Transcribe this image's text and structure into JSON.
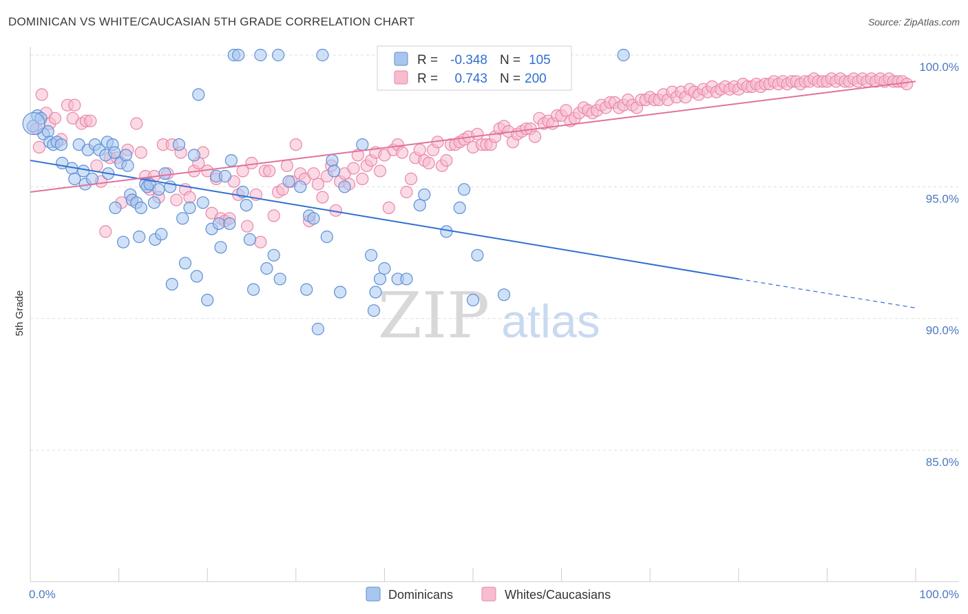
{
  "header": {
    "title": "DOMINICAN VS WHITE/CAUCASIAN 5TH GRADE CORRELATION CHART",
    "source": "Source: ZipAtlas.com"
  },
  "watermark": {
    "zip": "ZIP",
    "atlas": "atlas"
  },
  "colors": {
    "blue_fill": "#a9c6ef",
    "blue_stroke": "#5b8fd6",
    "blue_line": "#2f6fd0",
    "pink_fill": "#f6bcd0",
    "pink_stroke": "#ea86a8",
    "pink_line": "#e3709b",
    "tick_text": "#4a78c2",
    "grid": "#dddddd"
  },
  "legend": {
    "rows": [
      {
        "r_label": "R =",
        "r_value": "-0.348",
        "n_label": "N =",
        "n_value": "105"
      },
      {
        "r_label": "R =",
        "r_value": "0.743",
        "n_label": "N =",
        "n_value": "200"
      }
    ],
    "bottom": [
      "Dominicans",
      "Whites/Caucasians"
    ]
  },
  "chart_data": {
    "type": "scatter",
    "title": "DOMINICAN VS WHITE/CAUCASIAN 5TH GRADE CORRELATION CHART",
    "xlabel": "",
    "ylabel": "5th Grade",
    "xlim": [
      0,
      100
    ],
    "ylim": [
      80.5,
      100.5
    ],
    "x_tick_labels": [
      "0.0%",
      "100.0%"
    ],
    "y_ticks": [
      85,
      90,
      95,
      100
    ],
    "y_tick_labels": [
      "85.0%",
      "90.0%",
      "95.0%",
      "100.0%"
    ],
    "grid": true,
    "legend_position": "top-center",
    "series": [
      {
        "name": "Dominicans",
        "R": -0.348,
        "N": 105,
        "trend": {
          "x": [
            0,
            80,
            100
          ],
          "y": [
            96.0,
            91.5,
            90.4
          ],
          "dashed_from": 80
        },
        "points": [
          [
            0.3,
            97.3
          ],
          [
            0.8,
            97.7
          ],
          [
            1.2,
            97.6
          ],
          [
            1.5,
            97.0
          ],
          [
            2.0,
            97.1
          ],
          [
            2.2,
            96.7
          ],
          [
            2.6,
            96.6
          ],
          [
            3.0,
            96.7
          ],
          [
            3.5,
            96.6
          ],
          [
            3.6,
            95.9
          ],
          [
            4.7,
            95.7
          ],
          [
            5.0,
            95.3
          ],
          [
            5.5,
            96.6
          ],
          [
            6.0,
            95.6
          ],
          [
            6.2,
            95.1
          ],
          [
            6.5,
            96.4
          ],
          [
            7.0,
            95.3
          ],
          [
            7.3,
            96.6
          ],
          [
            7.8,
            96.4
          ],
          [
            8.5,
            96.2
          ],
          [
            8.7,
            96.7
          ],
          [
            8.8,
            95.5
          ],
          [
            9.3,
            96.6
          ],
          [
            9.5,
            96.3
          ],
          [
            9.6,
            94.2
          ],
          [
            10.2,
            95.9
          ],
          [
            10.5,
            92.9
          ],
          [
            10.8,
            96.2
          ],
          [
            11.0,
            95.8
          ],
          [
            11.3,
            94.7
          ],
          [
            11.5,
            94.5
          ],
          [
            12.0,
            94.4
          ],
          [
            12.3,
            93.1
          ],
          [
            12.5,
            94.2
          ],
          [
            13.0,
            95.1
          ],
          [
            13.2,
            95.0
          ],
          [
            13.5,
            95.1
          ],
          [
            14.0,
            94.4
          ],
          [
            14.1,
            93.0
          ],
          [
            14.5,
            94.9
          ],
          [
            14.8,
            93.2
          ],
          [
            15.2,
            95.5
          ],
          [
            15.8,
            95.0
          ],
          [
            16.0,
            91.3
          ],
          [
            16.8,
            96.6
          ],
          [
            17.2,
            93.8
          ],
          [
            17.5,
            92.1
          ],
          [
            18.0,
            94.2
          ],
          [
            18.5,
            96.2
          ],
          [
            18.8,
            91.6
          ],
          [
            19.0,
            98.5
          ],
          [
            19.5,
            94.4
          ],
          [
            20.0,
            90.7
          ],
          [
            20.5,
            93.4
          ],
          [
            21.0,
            95.4
          ],
          [
            21.3,
            93.6
          ],
          [
            21.5,
            92.7
          ],
          [
            22.0,
            95.4
          ],
          [
            22.5,
            93.6
          ],
          [
            22.7,
            96.0
          ],
          [
            23.0,
            100.0
          ],
          [
            23.5,
            100.0
          ],
          [
            24.0,
            94.8
          ],
          [
            24.4,
            94.3
          ],
          [
            24.8,
            93.0
          ],
          [
            25.2,
            91.1
          ],
          [
            26.0,
            100.0
          ],
          [
            26.7,
            91.9
          ],
          [
            27.5,
            92.4
          ],
          [
            28.0,
            100.0
          ],
          [
            28.2,
            91.5
          ],
          [
            29.2,
            95.2
          ],
          [
            30.5,
            95.0
          ],
          [
            31.2,
            91.1
          ],
          [
            31.5,
            93.9
          ],
          [
            32.0,
            93.8
          ],
          [
            32.5,
            89.6
          ],
          [
            33.0,
            100.0
          ],
          [
            33.5,
            93.1
          ],
          [
            34.1,
            96.0
          ],
          [
            34.3,
            95.6
          ],
          [
            35.0,
            91.0
          ],
          [
            35.5,
            95.0
          ],
          [
            37.5,
            96.6
          ],
          [
            38.5,
            92.4
          ],
          [
            38.8,
            90.3
          ],
          [
            39.0,
            91.0
          ],
          [
            39.5,
            91.5
          ],
          [
            40.0,
            91.9
          ],
          [
            41.5,
            91.5
          ],
          [
            42.5,
            91.5
          ],
          [
            44.0,
            94.3
          ],
          [
            44.5,
            94.7
          ],
          [
            47.0,
            93.3
          ],
          [
            48.5,
            94.2
          ],
          [
            49.0,
            94.9
          ],
          [
            50.0,
            90.7
          ],
          [
            50.5,
            92.4
          ],
          [
            53.5,
            90.9
          ],
          [
            67.0,
            100.0
          ]
        ]
      },
      {
        "name": "Whites/Caucasians",
        "R": 0.743,
        "N": 200,
        "trend": {
          "x": [
            0,
            100
          ],
          "y": [
            94.8,
            99.0
          ]
        },
        "points": [
          [
            0.7,
            97.2
          ],
          [
            1.0,
            96.5
          ],
          [
            1.3,
            98.5
          ],
          [
            1.8,
            97.8
          ],
          [
            2.2,
            97.4
          ],
          [
            2.8,
            97.6
          ],
          [
            3.5,
            96.8
          ],
          [
            4.2,
            98.1
          ],
          [
            4.8,
            97.6
          ],
          [
            5.0,
            98.1
          ],
          [
            5.8,
            97.4
          ],
          [
            6.3,
            97.5
          ],
          [
            6.8,
            97.5
          ],
          [
            7.5,
            95.8
          ],
          [
            8.0,
            95.2
          ],
          [
            8.5,
            93.3
          ],
          [
            9.0,
            96.1
          ],
          [
            9.8,
            96.1
          ],
          [
            10.3,
            94.4
          ],
          [
            11.0,
            96.4
          ],
          [
            11.5,
            94.5
          ],
          [
            12.0,
            97.4
          ],
          [
            12.5,
            96.3
          ],
          [
            13.0,
            95.4
          ],
          [
            13.5,
            94.9
          ],
          [
            14.0,
            95.4
          ],
          [
            14.5,
            94.6
          ],
          [
            15.0,
            96.6
          ],
          [
            15.5,
            95.5
          ],
          [
            16.0,
            96.6
          ],
          [
            16.5,
            94.5
          ],
          [
            17.0,
            96.3
          ],
          [
            17.5,
            94.9
          ],
          [
            18.0,
            94.6
          ],
          [
            18.5,
            95.6
          ],
          [
            19.0,
            95.9
          ],
          [
            19.5,
            96.3
          ],
          [
            20.0,
            95.6
          ],
          [
            20.5,
            94.0
          ],
          [
            21.0,
            95.3
          ],
          [
            21.5,
            93.8
          ],
          [
            22.0,
            93.7
          ],
          [
            22.5,
            93.8
          ],
          [
            23.0,
            95.2
          ],
          [
            23.5,
            94.7
          ],
          [
            24.0,
            95.6
          ],
          [
            24.5,
            93.5
          ],
          [
            25.0,
            95.9
          ],
          [
            25.5,
            94.7
          ],
          [
            26.0,
            92.9
          ],
          [
            26.5,
            95.6
          ],
          [
            27.0,
            95.6
          ],
          [
            27.5,
            93.9
          ],
          [
            28.0,
            94.8
          ],
          [
            28.5,
            94.9
          ],
          [
            29.0,
            95.8
          ],
          [
            29.5,
            95.2
          ],
          [
            30.0,
            96.6
          ],
          [
            30.5,
            95.5
          ],
          [
            31.0,
            95.3
          ],
          [
            31.5,
            93.7
          ],
          [
            32.0,
            95.5
          ],
          [
            32.5,
            95.1
          ],
          [
            33.0,
            94.6
          ],
          [
            33.5,
            95.4
          ],
          [
            34.0,
            95.8
          ],
          [
            34.5,
            94.1
          ],
          [
            35.0,
            95.2
          ],
          [
            35.5,
            95.5
          ],
          [
            36.0,
            95.1
          ],
          [
            36.5,
            95.7
          ],
          [
            37.0,
            96.2
          ],
          [
            37.5,
            95.3
          ],
          [
            38.0,
            95.8
          ],
          [
            38.5,
            96.0
          ],
          [
            39.0,
            96.3
          ],
          [
            39.5,
            95.6
          ],
          [
            40.0,
            96.2
          ],
          [
            40.5,
            94.2
          ],
          [
            41.0,
            96.4
          ],
          [
            41.5,
            96.6
          ],
          [
            42.0,
            96.3
          ],
          [
            42.5,
            94.8
          ],
          [
            43.0,
            95.3
          ],
          [
            43.5,
            96.1
          ],
          [
            44.0,
            96.4
          ],
          [
            44.5,
            96.0
          ],
          [
            45.0,
            95.9
          ],
          [
            45.5,
            96.4
          ],
          [
            46.0,
            96.7
          ],
          [
            46.5,
            95.8
          ],
          [
            47.0,
            96.0
          ],
          [
            47.5,
            96.6
          ],
          [
            48.0,
            96.6
          ],
          [
            48.5,
            96.7
          ],
          [
            49.0,
            96.8
          ],
          [
            49.5,
            96.9
          ],
          [
            50.0,
            96.5
          ],
          [
            50.5,
            97.0
          ],
          [
            51.0,
            96.6
          ],
          [
            51.5,
            96.6
          ],
          [
            52.0,
            96.6
          ],
          [
            52.5,
            96.9
          ],
          [
            53.0,
            97.2
          ],
          [
            53.5,
            97.3
          ],
          [
            54.0,
            97.1
          ],
          [
            54.5,
            96.7
          ],
          [
            55.0,
            97.0
          ],
          [
            55.5,
            97.1
          ],
          [
            56.0,
            97.2
          ],
          [
            56.5,
            97.2
          ],
          [
            57.0,
            96.9
          ],
          [
            57.5,
            97.6
          ],
          [
            58.0,
            97.4
          ],
          [
            58.5,
            97.5
          ],
          [
            59.0,
            97.4
          ],
          [
            59.5,
            97.7
          ],
          [
            60.0,
            97.7
          ],
          [
            60.5,
            97.9
          ],
          [
            61.0,
            97.5
          ],
          [
            61.5,
            97.6
          ],
          [
            62.0,
            97.8
          ],
          [
            62.5,
            98.0
          ],
          [
            63.0,
            97.9
          ],
          [
            63.5,
            97.8
          ],
          [
            64.0,
            97.9
          ],
          [
            64.5,
            98.1
          ],
          [
            65.0,
            98.0
          ],
          [
            65.5,
            98.2
          ],
          [
            66.0,
            98.2
          ],
          [
            66.5,
            98.0
          ],
          [
            67.0,
            98.1
          ],
          [
            67.5,
            98.3
          ],
          [
            68.0,
            98.1
          ],
          [
            68.5,
            98.0
          ],
          [
            69.0,
            98.3
          ],
          [
            69.5,
            98.3
          ],
          [
            70.0,
            98.4
          ],
          [
            70.5,
            98.3
          ],
          [
            71.0,
            98.3
          ],
          [
            71.5,
            98.5
          ],
          [
            72.0,
            98.3
          ],
          [
            72.5,
            98.6
          ],
          [
            73.0,
            98.4
          ],
          [
            73.5,
            98.6
          ],
          [
            74.0,
            98.4
          ],
          [
            74.5,
            98.7
          ],
          [
            75.0,
            98.6
          ],
          [
            75.5,
            98.5
          ],
          [
            76.0,
            98.7
          ],
          [
            76.5,
            98.6
          ],
          [
            77.0,
            98.8
          ],
          [
            77.5,
            98.6
          ],
          [
            78.0,
            98.7
          ],
          [
            78.5,
            98.8
          ],
          [
            79.0,
            98.7
          ],
          [
            79.5,
            98.8
          ],
          [
            80.0,
            98.7
          ],
          [
            80.5,
            98.9
          ],
          [
            81.0,
            98.8
          ],
          [
            81.5,
            98.8
          ],
          [
            82.0,
            98.9
          ],
          [
            82.5,
            98.8
          ],
          [
            83.0,
            98.9
          ],
          [
            83.5,
            98.9
          ],
          [
            84.0,
            99.0
          ],
          [
            84.5,
            98.9
          ],
          [
            85.0,
            99.0
          ],
          [
            85.5,
            98.9
          ],
          [
            86.0,
            99.0
          ],
          [
            86.5,
            99.0
          ],
          [
            87.0,
            98.9
          ],
          [
            87.5,
            99.0
          ],
          [
            88.0,
            99.0
          ],
          [
            88.5,
            99.1
          ],
          [
            89.0,
            99.0
          ],
          [
            89.5,
            99.0
          ],
          [
            90.0,
            99.0
          ],
          [
            90.5,
            99.1
          ],
          [
            91.0,
            99.0
          ],
          [
            91.5,
            99.1
          ],
          [
            92.0,
            99.0
          ],
          [
            92.5,
            99.0
          ],
          [
            93.0,
            99.1
          ],
          [
            93.5,
            99.0
          ],
          [
            94.0,
            99.1
          ],
          [
            94.5,
            99.0
          ],
          [
            95.0,
            99.1
          ],
          [
            95.5,
            99.0
          ],
          [
            96.0,
            99.1
          ],
          [
            96.5,
            99.0
          ],
          [
            97.0,
            99.1
          ],
          [
            97.5,
            99.0
          ],
          [
            98.0,
            99.0
          ],
          [
            98.5,
            99.0
          ],
          [
            99.0,
            98.9
          ]
        ]
      }
    ]
  }
}
